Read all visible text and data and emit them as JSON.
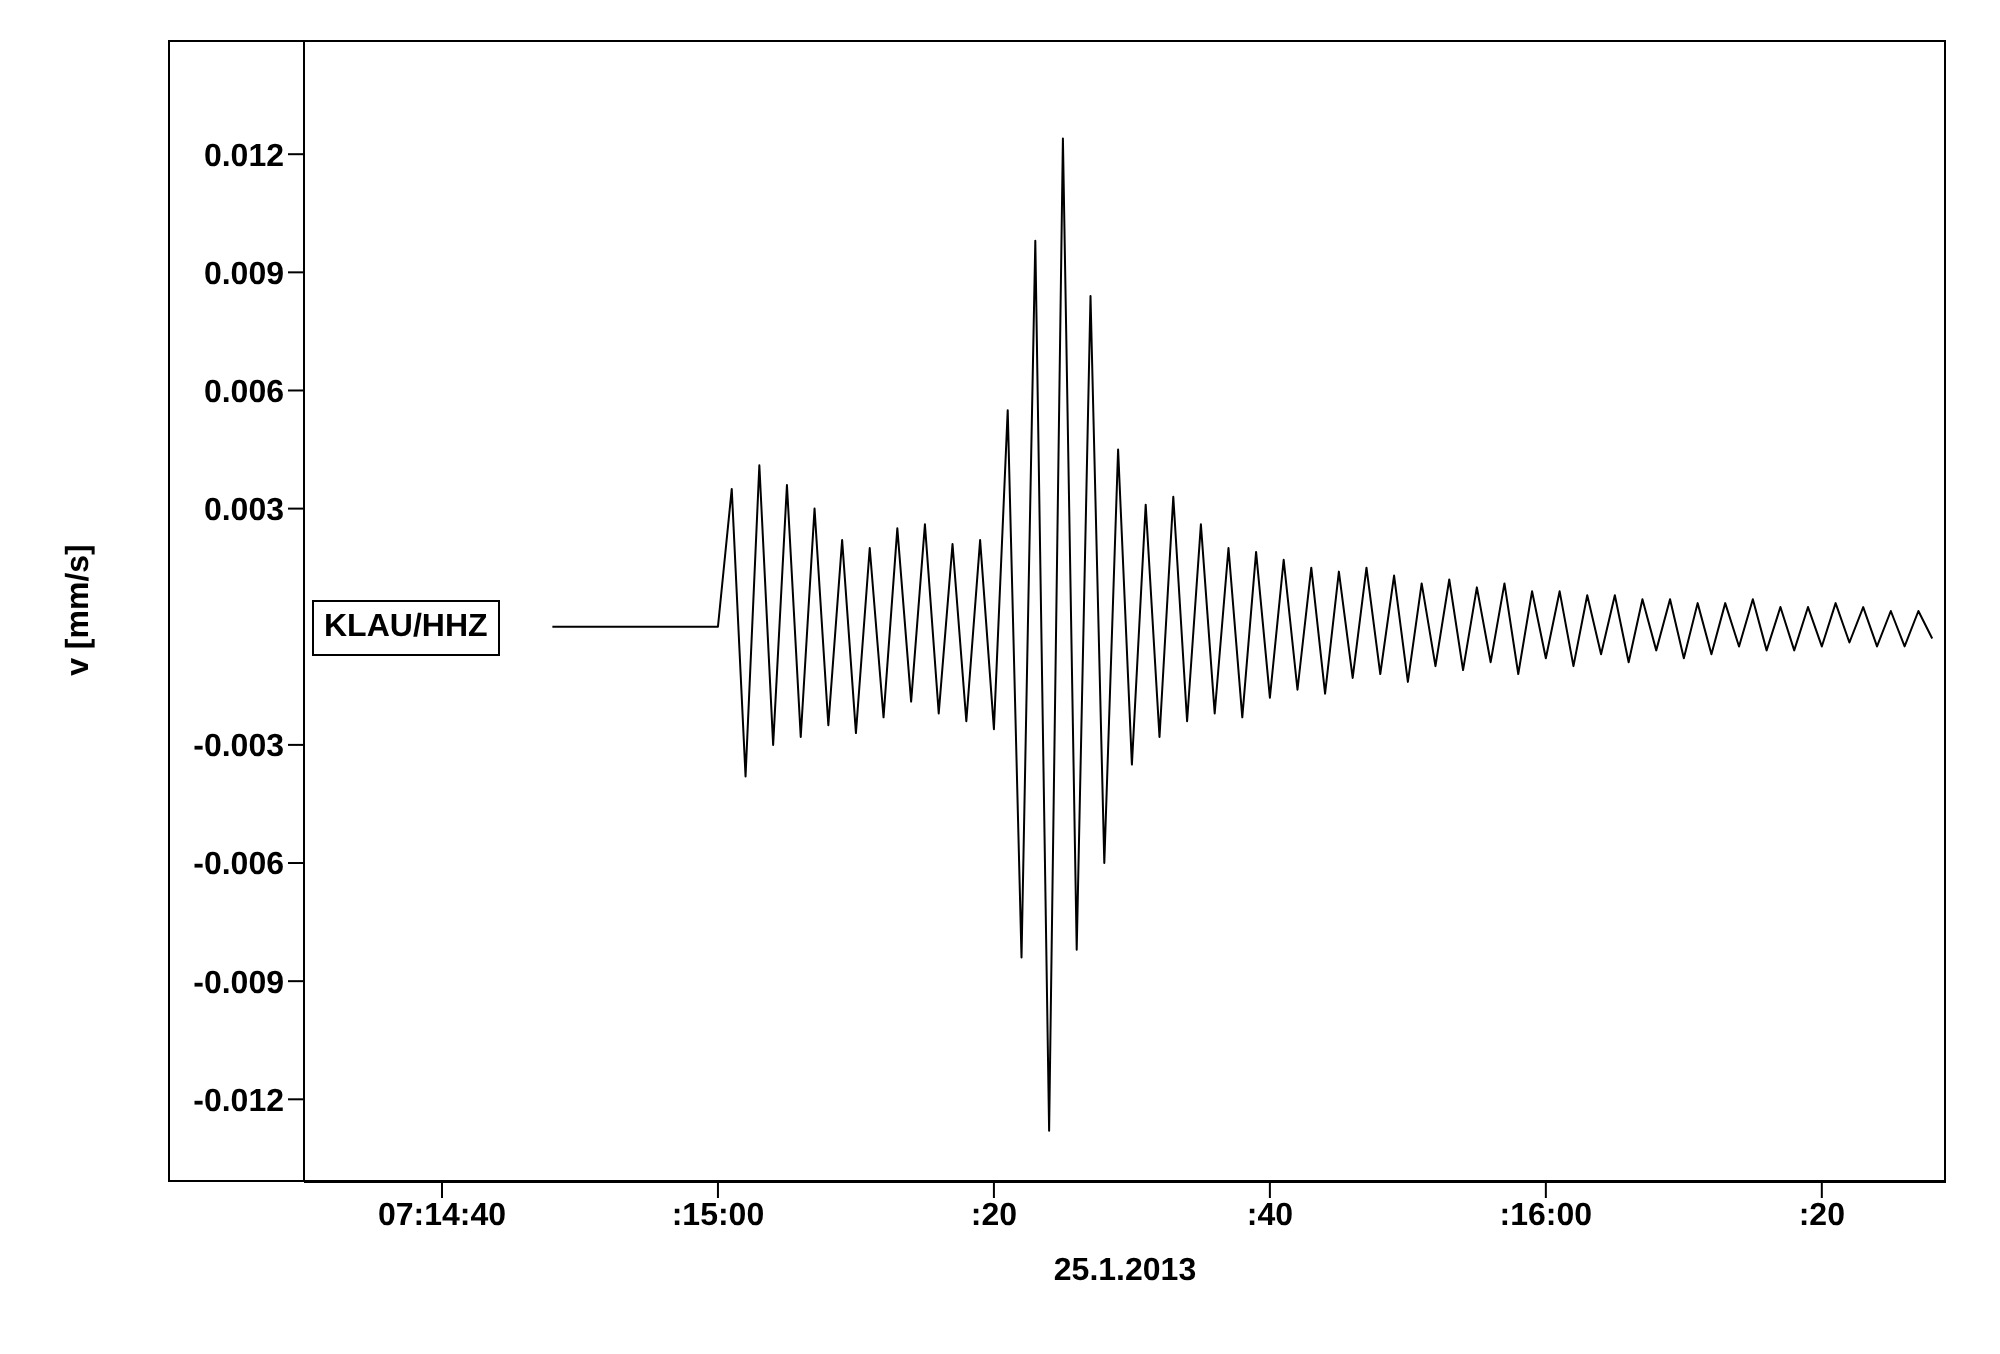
{
  "chart_data": {
    "type": "line",
    "xlabel": "25.1.2013",
    "ylabel": "v [mm/s]",
    "annotations": [
      "KLAU/HHZ"
    ],
    "xlim": [
      "2013-01-25T07:14:30",
      "2013-01-25T07:16:29"
    ],
    "xticks": [
      {
        "value": "2013-01-25T07:14:40",
        "label": "07:14:40"
      },
      {
        "value": "2013-01-25T07:15:00",
        "label": ":15:00"
      },
      {
        "value": "2013-01-25T07:15:20",
        "label": ":20"
      },
      {
        "value": "2013-01-25T07:15:40",
        "label": ":40"
      },
      {
        "value": "2013-01-25T07:16:00",
        "label": ":16:00"
      },
      {
        "value": "2013-01-25T07:16:20",
        "label": ":20"
      }
    ],
    "ylim": [
      -0.0141,
      0.0149
    ],
    "yticks": [
      -0.012,
      -0.009,
      -0.006,
      -0.003,
      0.003,
      0.006,
      0.009,
      0.012
    ],
    "grid": false,
    "legend": false,
    "marker": "none",
    "line_style": "solid",
    "x": [
      "2013-01-25T07:14:48",
      "2013-01-25T07:15:00",
      "2013-01-25T07:15:01",
      "2013-01-25T07:15:02",
      "2013-01-25T07:15:03",
      "2013-01-25T07:15:04",
      "2013-01-25T07:15:05",
      "2013-01-25T07:15:06",
      "2013-01-25T07:15:07",
      "2013-01-25T07:15:08",
      "2013-01-25T07:15:09",
      "2013-01-25T07:15:10",
      "2013-01-25T07:15:11",
      "2013-01-25T07:15:12",
      "2013-01-25T07:15:13",
      "2013-01-25T07:15:14",
      "2013-01-25T07:15:15",
      "2013-01-25T07:15:16",
      "2013-01-25T07:15:17",
      "2013-01-25T07:15:18",
      "2013-01-25T07:15:19",
      "2013-01-25T07:15:20",
      "2013-01-25T07:15:21",
      "2013-01-25T07:15:22",
      "2013-01-25T07:15:23",
      "2013-01-25T07:15:24",
      "2013-01-25T07:15:25",
      "2013-01-25T07:15:26",
      "2013-01-25T07:15:27",
      "2013-01-25T07:15:28",
      "2013-01-25T07:15:29",
      "2013-01-25T07:15:30",
      "2013-01-25T07:15:31",
      "2013-01-25T07:15:32",
      "2013-01-25T07:15:33",
      "2013-01-25T07:15:34",
      "2013-01-25T07:15:35",
      "2013-01-25T07:15:36",
      "2013-01-25T07:15:37",
      "2013-01-25T07:15:38",
      "2013-01-25T07:15:39",
      "2013-01-25T07:15:40",
      "2013-01-25T07:15:41",
      "2013-01-25T07:15:42",
      "2013-01-25T07:15:43",
      "2013-01-25T07:15:44",
      "2013-01-25T07:15:45",
      "2013-01-25T07:15:46",
      "2013-01-25T07:15:47",
      "2013-01-25T07:15:48",
      "2013-01-25T07:15:49",
      "2013-01-25T07:15:50",
      "2013-01-25T07:15:51",
      "2013-01-25T07:15:52",
      "2013-01-25T07:15:53",
      "2013-01-25T07:15:54",
      "2013-01-25T07:15:55",
      "2013-01-25T07:15:56",
      "2013-01-25T07:15:57",
      "2013-01-25T07:15:58",
      "2013-01-25T07:15:59",
      "2013-01-25T07:16:00",
      "2013-01-25T07:16:01",
      "2013-01-25T07:16:02",
      "2013-01-25T07:16:03",
      "2013-01-25T07:16:04",
      "2013-01-25T07:16:05",
      "2013-01-25T07:16:06",
      "2013-01-25T07:16:07",
      "2013-01-25T07:16:08",
      "2013-01-25T07:16:09",
      "2013-01-25T07:16:10",
      "2013-01-25T07:16:11",
      "2013-01-25T07:16:12",
      "2013-01-25T07:16:13",
      "2013-01-25T07:16:14",
      "2013-01-25T07:16:15",
      "2013-01-25T07:16:16",
      "2013-01-25T07:16:17",
      "2013-01-25T07:16:18",
      "2013-01-25T07:16:19",
      "2013-01-25T07:16:20",
      "2013-01-25T07:16:21",
      "2013-01-25T07:16:22",
      "2013-01-25T07:16:23",
      "2013-01-25T07:16:24",
      "2013-01-25T07:16:25",
      "2013-01-25T07:16:26",
      "2013-01-25T07:16:27",
      "2013-01-25T07:16:28"
    ],
    "series": [
      {
        "color": "#000000",
        "values": [
          0,
          0,
          0.0035,
          -0.0038,
          0.0041,
          -0.003,
          0.0036,
          -0.0028,
          0.003,
          -0.0025,
          0.0022,
          -0.0027,
          0.002,
          -0.0023,
          0.0025,
          -0.0019,
          0.0026,
          -0.0022,
          0.0021,
          -0.0024,
          0.0022,
          -0.0026,
          0.0055,
          -0.0084,
          0.0098,
          -0.0128,
          0.0124,
          -0.0082,
          0.0084,
          -0.006,
          0.0045,
          -0.0035,
          0.0031,
          -0.0028,
          0.0033,
          -0.0024,
          0.0026,
          -0.0022,
          0.002,
          -0.0023,
          0.0019,
          -0.0018,
          0.0017,
          -0.0016,
          0.0015,
          -0.0017,
          0.0014,
          -0.0013,
          0.0015,
          -0.0012,
          0.0013,
          -0.0014,
          0.0011,
          -0.001,
          0.0012,
          -0.0011,
          0.001,
          -0.0009,
          0.0011,
          -0.0012,
          0.0009,
          -0.0008,
          0.0009,
          -0.001,
          0.0008,
          -0.0007,
          0.0008,
          -0.0009,
          0.0007,
          -0.0006,
          0.0007,
          -0.0008,
          0.0006,
          -0.0007,
          0.0006,
          -0.0005,
          0.0007,
          -0.0006,
          0.0005,
          -0.0006,
          0.0005,
          -0.0005,
          0.0006,
          -0.0004,
          0.0005,
          -0.0005,
          0.0004,
          -0.0005,
          0.0004,
          -0.0003
        ]
      }
    ]
  }
}
